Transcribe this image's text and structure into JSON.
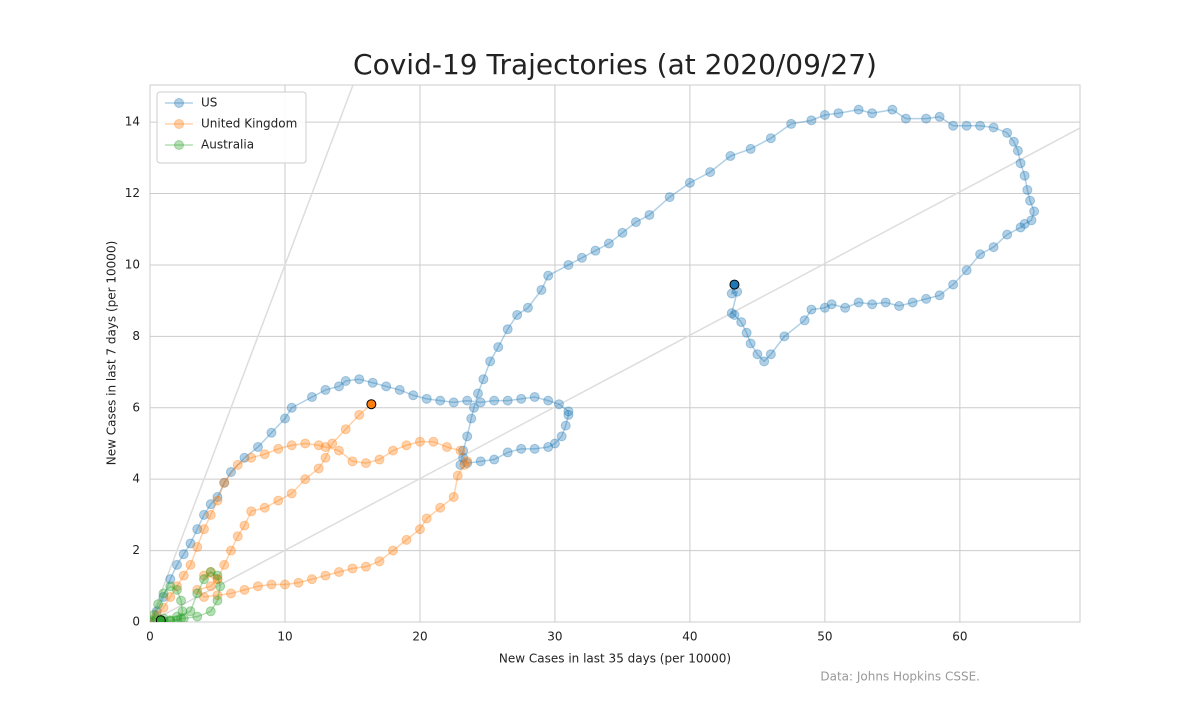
{
  "chart_data": {
    "type": "line",
    "title": "Covid-19 Trajectories (at 2020/09/27)",
    "x_label": "New Cases in last 35 days (per 10000)",
    "y_label": "New Cases in last 7 days (per 10000)",
    "source": "Data: Johns Hopkins CSSE.",
    "xlim": [
      0,
      68.9
    ],
    "ylim": [
      0,
      15.04
    ],
    "xticks": [
      0,
      10,
      20,
      30,
      40,
      50,
      60
    ],
    "yticks": [
      0,
      2,
      4,
      6,
      8,
      10,
      12,
      14
    ],
    "grid": true,
    "legend": "upper left",
    "series": [
      {
        "name": "US",
        "color": "#1f77b4",
        "x": [
          0,
          0.5,
          1,
          1.5,
          2,
          2.5,
          3,
          3.5,
          4,
          4.5,
          5,
          5.5,
          6,
          7,
          8,
          9,
          10,
          10.5,
          12,
          13,
          14,
          14.5,
          15.5,
          16.5,
          17.5,
          18.5,
          19.5,
          20.5,
          21.5,
          22.5,
          23.5,
          24.5,
          25.5,
          26.5,
          27.5,
          28.5,
          29.5,
          30.3,
          31,
          31,
          30.8,
          30.5,
          30,
          29.5,
          28.5,
          27.5,
          26.5,
          25.5,
          24.5,
          23.5,
          23.2,
          23,
          23.2,
          23.5,
          23.8,
          24,
          24.3,
          24.7,
          25.2,
          25.8,
          26.5,
          27.2,
          28,
          29,
          29.5,
          31,
          32,
          33,
          34,
          35,
          36,
          37,
          38.5,
          40,
          41.5,
          43,
          44.5,
          46,
          47.5,
          49,
          50,
          51,
          52.5,
          53.5,
          55,
          56,
          57.5,
          58.5,
          59.5,
          60.5,
          61.5,
          62.5,
          63.5,
          64,
          64.3,
          64.5,
          64.8,
          65,
          65.2,
          65.5,
          65.3,
          64.8,
          64.5,
          63.5,
          62.5,
          61.5,
          60.5,
          59.5,
          58.5,
          57.5,
          56.5,
          55.5,
          54.5,
          53.5,
          52.5,
          51.5,
          50.5,
          50,
          49,
          48.5,
          47,
          46,
          45.5,
          45,
          44.5,
          44.2,
          43.8,
          43.3,
          43.1,
          43.5,
          43.1,
          43.3
        ],
        "values": [
          0,
          0.3,
          0.7,
          1.2,
          1.6,
          1.9,
          2.2,
          2.6,
          3.0,
          3.3,
          3.5,
          3.9,
          4.2,
          4.6,
          4.9,
          5.3,
          5.7,
          6.0,
          6.3,
          6.5,
          6.6,
          6.75,
          6.8,
          6.7,
          6.6,
          6.5,
          6.35,
          6.25,
          6.2,
          6.15,
          6.2,
          6.15,
          6.2,
          6.2,
          6.25,
          6.3,
          6.2,
          6.1,
          5.9,
          5.8,
          5.5,
          5.2,
          5.0,
          4.9,
          4.85,
          4.85,
          4.75,
          4.55,
          4.5,
          4.45,
          4.6,
          4.4,
          4.8,
          5.2,
          5.7,
          6.0,
          6.4,
          6.8,
          7.3,
          7.7,
          8.2,
          8.6,
          8.8,
          9.3,
          9.7,
          10.0,
          10.2,
          10.4,
          10.6,
          10.9,
          11.2,
          11.4,
          11.9,
          12.3,
          12.6,
          13.05,
          13.25,
          13.55,
          13.95,
          14.05,
          14.2,
          14.25,
          14.35,
          14.25,
          14.35,
          14.1,
          14.1,
          14.15,
          13.9,
          13.9,
          13.9,
          13.85,
          13.7,
          13.45,
          13.2,
          12.85,
          12.5,
          12.1,
          11.8,
          11.5,
          11.25,
          11.15,
          11.05,
          10.85,
          10.5,
          10.3,
          9.85,
          9.45,
          9.15,
          9.05,
          8.95,
          8.85,
          8.95,
          8.9,
          8.95,
          8.8,
          8.9,
          8.8,
          8.75,
          8.45,
          8.0,
          7.5,
          7.3,
          7.5,
          7.8,
          8.1,
          8.4,
          8.6,
          8.65,
          9.25,
          9.2,
          9.45
        ]
      },
      {
        "name": "United Kingdom",
        "color": "#ff7f0e",
        "x": [
          0,
          0.5,
          1,
          1.5,
          2,
          2.5,
          3,
          3.5,
          4,
          4.5,
          5,
          5.5,
          6.5,
          7.5,
          8.5,
          9.5,
          10.5,
          11.5,
          12.5,
          13,
          14,
          15,
          16,
          17,
          18,
          19,
          20,
          21,
          22,
          23,
          23.5,
          23.3,
          22.8,
          22.5,
          21.5,
          20.5,
          20,
          19,
          18,
          17,
          16,
          15,
          14,
          13,
          12,
          11,
          10,
          9,
          8,
          7,
          6,
          5,
          4,
          3.5,
          4.5,
          5,
          4.5,
          4,
          5,
          5.5,
          6,
          6.5,
          7,
          7.5,
          8.5,
          9.5,
          10.5,
          11.5,
          12.5,
          13,
          13.5,
          14.5,
          15.5,
          16.4
        ],
        "values": [
          0,
          0.2,
          0.4,
          0.7,
          1.0,
          1.3,
          1.6,
          2.1,
          2.6,
          3.0,
          3.4,
          3.9,
          4.4,
          4.6,
          4.7,
          4.85,
          4.95,
          5.0,
          4.95,
          4.9,
          4.8,
          4.5,
          4.45,
          4.55,
          4.8,
          4.95,
          5.05,
          5.05,
          4.9,
          4.8,
          4.5,
          4.4,
          4.1,
          3.5,
          3.2,
          2.9,
          2.6,
          2.3,
          2.0,
          1.7,
          1.55,
          1.5,
          1.4,
          1.3,
          1.2,
          1.1,
          1.05,
          1.05,
          1.0,
          0.9,
          0.8,
          0.75,
          0.7,
          0.9,
          1.0,
          1.2,
          1.4,
          1.3,
          1.2,
          1.6,
          2.0,
          2.4,
          2.7,
          3.1,
          3.2,
          3.4,
          3.6,
          4.0,
          4.3,
          4.6,
          5.0,
          5.4,
          5.8,
          6.1
        ]
      },
      {
        "name": "Australia",
        "color": "#2ca02c",
        "x": [
          0.1,
          0.3,
          0.6,
          1,
          1.5,
          2,
          2.3,
          2.4,
          2.3,
          2,
          1.5,
          1,
          0.5,
          1,
          2,
          3,
          3.5,
          4,
          4.5,
          5,
          5.2,
          5,
          4.5,
          3.5,
          2.5,
          1.5,
          0.8
        ],
        "values": [
          0.05,
          0.2,
          0.5,
          0.8,
          1.0,
          0.9,
          0.6,
          0.3,
          0.1,
          0.05,
          0.03,
          0.03,
          0.05,
          0.1,
          0.15,
          0.3,
          0.8,
          1.2,
          1.4,
          1.3,
          1.0,
          0.6,
          0.3,
          0.15,
          0.1,
          0.05,
          0.05
        ]
      }
    ]
  }
}
